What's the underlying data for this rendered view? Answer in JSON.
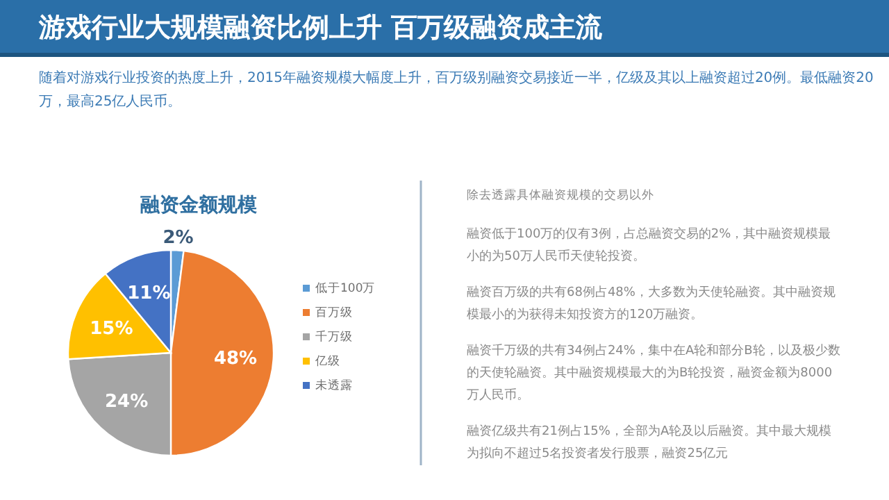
{
  "chart_data": {
    "type": "pie",
    "title": "游戏行业大规模融资比例上升 百万级融资成主流",
    "subtitle": "随着对游戏行业投资的热度上升，2015年融资规模大幅度上升，百万级别融资交易接近一半，亿级及其以上融资超过20例。最低融资20万，最高25亿人民币。",
    "annotations": [
      "融资金额规模",
      "除去透露具体融资规模的交易以外",
      "融资低于100万的仅有3例，占总融资交易的2%，其中融资规模最小的为50万人民币天使轮投资。",
      "融资百万级的共有68例占48%，大多数为天使轮融资。其中融资规模最小的为获得未知投资方的120万融资。",
      "融资千万级的共有34例占24%，集中在A轮和部分B轮，以及极少数的天使轮融资。其中融资规模最大的为B轮投资，融资金额为8000万人民币。",
      "融资亿级共有21例占15%，全部为A轮及以后融资。其中最大规模为拟向不超过5名投资者发行股票，融资25亿元"
    ],
    "categories": [
      "低于100万",
      "百万级",
      "千万级",
      "亿级",
      "未透露"
    ],
    "values": [
      2,
      48,
      24,
      15,
      11
    ],
    "colors": [
      "#5b9bd5",
      "#ed7d31",
      "#a5a5a5",
      "#ffc000",
      "#4472c4"
    ],
    "value_labels": [
      "2%",
      "48%",
      "24%",
      "15%",
      "11%"
    ],
    "legend": "right"
  }
}
